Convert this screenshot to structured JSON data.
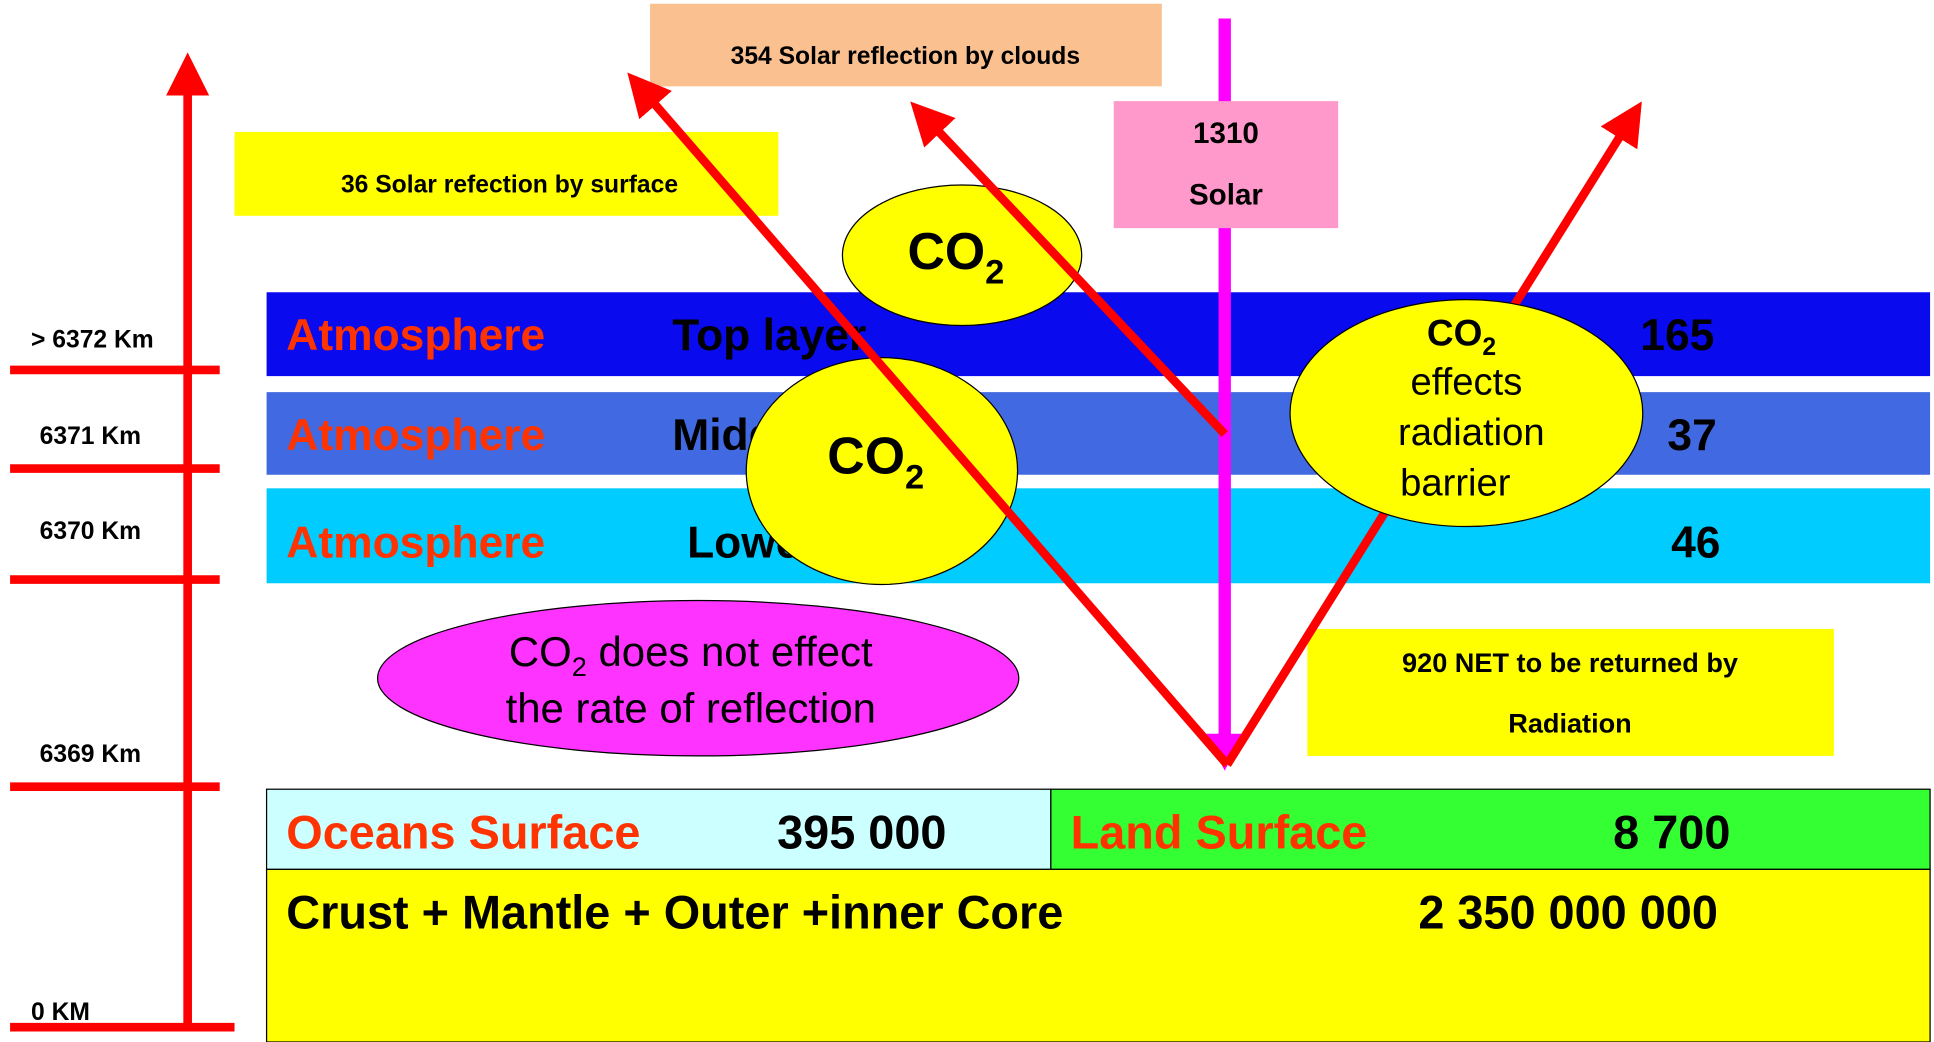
{
  "altitudes": [
    "> 6372 Km",
    "6371 Km",
    "6370 Km",
    "6369 Km",
    "0 KM"
  ],
  "layers": [
    {
      "name": "Atmosphere",
      "level": "Top layer",
      "value": "165"
    },
    {
      "name": "Atmosphere",
      "level": "Middle layer",
      "value": "37"
    },
    {
      "name": "Atmosphere",
      "level": "Lower layer",
      "value": "46"
    }
  ],
  "solar": {
    "value": "1310",
    "label": "Solar"
  },
  "cloud_reflection": "354  Solar reflection by clouds",
  "surface_reflection": "36 Solar refection by surface",
  "net_return": [
    "920 NET to be returned by",
    "Radiation"
  ],
  "co2_bubbles": [
    {
      "text": "CO",
      "sub": "2"
    },
    {
      "text": "CO",
      "sub": "2"
    }
  ],
  "barrier_bubble": {
    "text": "CO",
    "sub": "2",
    "lines": [
      "effects",
      "radiation",
      "barrier"
    ]
  },
  "reflection_note": {
    "text": "CO",
    "sub": "2",
    "rest": " does not effect",
    "line2": "the rate of reflection"
  },
  "surfaces": {
    "oceans": {
      "label": "Oceans Surface",
      "value": "395 000"
    },
    "land": {
      "label": "Land Surface",
      "value": "8 700"
    },
    "core": {
      "label": "Crust + Mantle + Outer +inner Core",
      "value": "2 350 000 000"
    }
  }
}
